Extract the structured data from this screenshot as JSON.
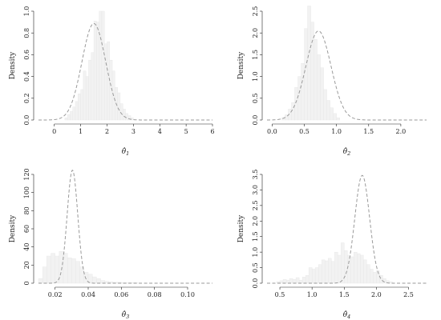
{
  "chart_data": [
    {
      "type": "bar",
      "subtype": "histogram-with-density",
      "xlabel": "θ̂1",
      "ylabel": "Density",
      "xlim": [
        -0.6,
        6.0
      ],
      "ylim": [
        0,
        1.0
      ],
      "xticks": [
        0,
        1,
        2,
        3,
        4,
        5,
        6
      ],
      "yticks": [
        0.0,
        0.2,
        0.4,
        0.6,
        0.8,
        1.0
      ],
      "bins": {
        "start": 0.4,
        "width": 0.1,
        "values": [
          0.02,
          0.05,
          0.08,
          0.12,
          0.17,
          0.24,
          0.28,
          0.45,
          0.4,
          0.55,
          0.62,
          0.91,
          0.9,
          1.0,
          1.0,
          0.7,
          0.72,
          0.55,
          0.45,
          0.3,
          0.25,
          0.15,
          0.1,
          0.06,
          0.04,
          0.02
        ]
      },
      "density_curve": {
        "distribution": "normal",
        "mean": 1.5,
        "sd": 0.45,
        "x_range": [
          -0.6,
          6.0
        ]
      },
      "grid": false,
      "legend": "none"
    },
    {
      "type": "bar",
      "subtype": "histogram-with-density",
      "xlabel": "θ̂2",
      "ylabel": "Density",
      "xlim": [
        -0.08,
        2.4
      ],
      "ylim": [
        0,
        2.5
      ],
      "xticks": [
        0.0,
        0.5,
        1.0,
        1.5,
        2.0
      ],
      "yticks": [
        0.0,
        0.5,
        1.0,
        1.5,
        2.0,
        2.5
      ],
      "bins": {
        "start": 0.15,
        "width": 0.05,
        "values": [
          0.05,
          0.12,
          0.25,
          0.4,
          0.75,
          1.0,
          1.3,
          2.1,
          2.62,
          2.25,
          1.85,
          1.5,
          1.2,
          0.7,
          0.45,
          0.28,
          0.15,
          0.05
        ]
      },
      "density_curve": {
        "distribution": "normal",
        "mean": 0.72,
        "sd": 0.195,
        "x_range": [
          -0.08,
          2.4
        ]
      },
      "grid": false,
      "legend": "none"
    },
    {
      "type": "bar",
      "subtype": "histogram-with-density",
      "xlabel": "θ̂3",
      "ylabel": "Density",
      "xlim": [
        0.01,
        0.115
      ],
      "ylim": [
        0,
        120
      ],
      "xticks": [
        0.02,
        0.04,
        0.06,
        0.08,
        0.1
      ],
      "yticks": [
        0,
        20,
        40,
        60,
        80,
        100,
        120
      ],
      "bins": {
        "start": 0.01,
        "width": 0.0025,
        "values": [
          5,
          18,
          30,
          33,
          30,
          35,
          33,
          28,
          27,
          24,
          18,
          12,
          10,
          7,
          5,
          3,
          2,
          1.5,
          1,
          1,
          0.5,
          0.5,
          0.5,
          0.5
        ]
      },
      "density_curve": {
        "distribution": "normal",
        "mean": 0.0305,
        "sd": 0.0032,
        "x_range": [
          0.01,
          0.115
        ]
      },
      "grid": false,
      "legend": "none"
    },
    {
      "type": "bar",
      "subtype": "histogram-with-density",
      "xlabel": "θ̂4",
      "ylabel": "Density",
      "xlim": [
        0.3,
        2.78
      ],
      "ylim": [
        0,
        3.5
      ],
      "xticks": [
        0.5,
        1.0,
        1.5,
        2.0,
        2.5
      ],
      "yticks": [
        0.0,
        0.5,
        1.0,
        1.5,
        2.0,
        2.5,
        3.0,
        3.5
      ],
      "bins": {
        "start": 0.45,
        "width": 0.05,
        "values": [
          0.05,
          0.08,
          0.12,
          0.1,
          0.15,
          0.12,
          0.18,
          0.1,
          0.2,
          0.25,
          0.5,
          0.45,
          0.5,
          0.6,
          0.75,
          0.72,
          0.8,
          0.7,
          1.0,
          0.9,
          1.3,
          1.05,
          0.9,
          0.85,
          1.0,
          0.95,
          0.9,
          0.75,
          0.6,
          0.45,
          0.35,
          0.4,
          0.25,
          0.15,
          0.08,
          0.05
        ]
      },
      "density_curve": {
        "distribution": "normal",
        "mean": 1.78,
        "sd": 0.115,
        "x_range": [
          0.3,
          2.78
        ]
      },
      "grid": false,
      "legend": "none"
    }
  ]
}
